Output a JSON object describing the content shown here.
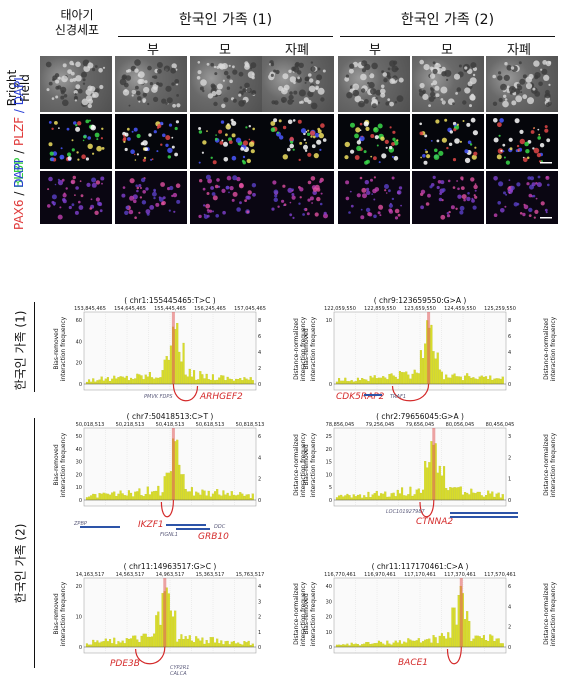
{
  "top_figure": {
    "corner_label": "태아기\n신경세포",
    "family_1": "한국인 가족 (1)",
    "family_2": "한국인 가족 (2)",
    "columns": [
      "부",
      "모",
      "자폐",
      "부",
      "모",
      "자폐"
    ],
    "rows": [
      {
        "line1": "Bright",
        "line2": "Field"
      },
      {
        "part1": "BLBP",
        "part1_color": "#2fcc3c",
        "sep": " / ",
        "part2": "PLZF",
        "part2_color": "#e03b3b",
        "part3": " / DAPI",
        "part3_color": "#2a3fd6"
      },
      {
        "part1": "PAX6",
        "part1_color": "#e03b3b",
        "sep": " / ",
        "part2": "DAPI",
        "part2_color": "#2a3fd6"
      }
    ]
  },
  "hic_figure": {
    "family_1_label": "한국인 가족 (1)",
    "family_2_label": "한국인 가족 (2)",
    "y_left_label": "Bias-removed\ninteraction frequency",
    "y_right_label": "Distance-normalized\ninteraction frequency",
    "colors": {
      "bars": "#d8dc2a",
      "bar_edge": "#b7bb1a",
      "highlight": "#e05a5a",
      "arc": "#d42a2a",
      "gene_red": "#d42a2a",
      "gene_blue": "#2d54a8"
    },
    "panels": [
      {
        "title": "( chr1:155445465:T>C )",
        "x_ticks": [
          "153,845,465",
          "154,645,465",
          "155,445,465",
          "156,245,465",
          "157,045,465"
        ],
        "y_left_ticks": [
          "0",
          "20",
          "40",
          "60"
        ],
        "y_right_ticks": [
          "0",
          "2",
          "4",
          "6",
          "8"
        ],
        "genes_red": [
          "ARHGEF2"
        ],
        "genes_small": [
          "PMVK",
          "FDPS"
        ]
      },
      {
        "title": "( chr9:123659550:G>A )",
        "x_ticks": [
          "122,059,550",
          "122,859,550",
          "123,659,550",
          "124,459,550",
          "125,259,550"
        ],
        "y_left_ticks": [
          "0",
          "10"
        ],
        "y_right_ticks": [
          "0",
          "2",
          "4",
          "6",
          "8"
        ],
        "genes_red": [
          "CDK5RAP2"
        ],
        "genes_small": [
          "TRAF1"
        ]
      },
      {
        "title": "( chr7:50418513:C>T )",
        "x_ticks": [
          "50,018,513",
          "50,218,513",
          "50,418,513",
          "50,618,513",
          "50,818,513"
        ],
        "y_left_ticks": [
          "0",
          "10",
          "20",
          "30",
          "40",
          "50"
        ],
        "y_right_ticks": [
          "0",
          "2",
          "4",
          "6"
        ],
        "genes_red": [
          "IKZF1",
          "GRB10"
        ],
        "genes_small": [
          "ZPBP",
          "DDC",
          "FIGNL1"
        ]
      },
      {
        "title": "( chr2:79656045:G>A )",
        "x_ticks": [
          "78,856,045",
          "79,256,045",
          "79,656,045",
          "80,056,045",
          "80,456,045"
        ],
        "y_left_ticks": [
          "0",
          "5",
          "10",
          "15",
          "20",
          "25"
        ],
        "y_right_ticks": [
          "0",
          "1",
          "2",
          "3"
        ],
        "genes_red": [
          "CTNNA2"
        ],
        "genes_small": [
          "LOC101927987"
        ]
      },
      {
        "title": "( chr11:14963517:G>C )",
        "x_ticks": [
          "14,163,517",
          "14,563,517",
          "14,963,517",
          "15,363,517",
          "15,763,517"
        ],
        "y_left_ticks": [
          "0",
          "10",
          "20"
        ],
        "y_right_ticks": [
          "0",
          "1",
          "2",
          "3",
          "4"
        ],
        "genes_red": [
          "PDE3B"
        ],
        "genes_small": [
          "CYP2R1",
          "CALCA"
        ]
      },
      {
        "title": "( chr11:117170461:C>A )",
        "x_ticks": [
          "116,770,461",
          "116,970,461",
          "117,170,461",
          "117,370,461",
          "117,570,461"
        ],
        "y_left_ticks": [
          "0",
          "10",
          "20",
          "30",
          "40"
        ],
        "y_right_ticks": [
          "0",
          "2",
          "4",
          "6"
        ],
        "genes_red": [
          "BACE1"
        ],
        "genes_small": []
      }
    ]
  }
}
